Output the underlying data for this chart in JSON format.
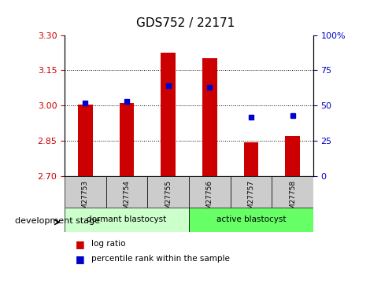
{
  "title": "GDS752 / 22171",
  "samples": [
    "GSM27753",
    "GSM27754",
    "GSM27755",
    "GSM27756",
    "GSM27757",
    "GSM27758"
  ],
  "log_ratios": [
    3.005,
    3.01,
    3.225,
    3.2,
    2.845,
    2.87
  ],
  "percentile_ranks": [
    52,
    53,
    64,
    63,
    42,
    43
  ],
  "baseline": 2.7,
  "ylim_left": [
    2.7,
    3.3
  ],
  "ylim_right": [
    0,
    100
  ],
  "yticks_left": [
    2.7,
    2.85,
    3.0,
    3.15,
    3.3
  ],
  "yticks_right": [
    0,
    25,
    50,
    75,
    100
  ],
  "bar_color": "#cc0000",
  "dot_color": "#0000cc",
  "groups": [
    {
      "label": "dormant blastocyst",
      "color": "#ccffcc"
    },
    {
      "label": "active blastocyst",
      "color": "#66ff66"
    }
  ],
  "group_label": "development stage",
  "legend_items": [
    "log ratio",
    "percentile rank within the sample"
  ],
  "tick_color_left": "#cc0000",
  "tick_color_right": "#0000cc",
  "background_xtick": "#cccccc"
}
